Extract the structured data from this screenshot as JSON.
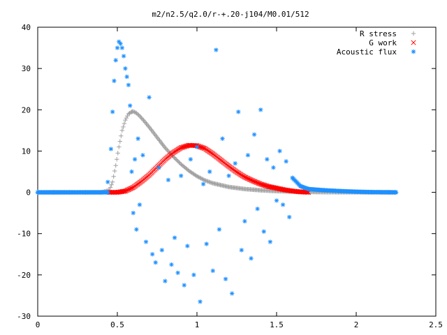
{
  "chart_data": {
    "type": "scatter",
    "title": "m2/n2.5/q2.0/r-+.20-j104/M0.01/512",
    "xlabel": "",
    "ylabel": "",
    "xlim": [
      0,
      2.5
    ],
    "ylim": [
      -30,
      40
    ],
    "xticks": [
      "0",
      "0.5",
      "1",
      "1.5",
      "2",
      "2.5"
    ],
    "yticks": [
      "-30",
      "-20",
      "-10",
      "0",
      "10",
      "20",
      "30",
      "40"
    ],
    "grid": false,
    "legend_position": "top-right",
    "series": [
      {
        "name": "R stress",
        "marker": "+",
        "color": "#a0a0a0",
        "x": [
          0.0,
          0.1,
          0.2,
          0.3,
          0.4,
          0.45,
          0.47,
          0.49,
          0.51,
          0.53,
          0.55,
          0.57,
          0.59,
          0.6,
          0.62,
          0.64,
          0.67,
          0.7,
          0.73,
          0.76,
          0.8,
          0.85,
          0.9,
          0.95,
          1.0,
          1.05,
          1.1,
          1.2,
          1.3,
          1.4,
          1.5,
          1.6,
          1.7,
          1.8,
          1.9,
          2.0,
          2.1,
          2.2,
          2.25
        ],
        "y": [
          0,
          0,
          0,
          0,
          0,
          0.5,
          2.5,
          6.5,
          11,
          15,
          17.5,
          19,
          19.5,
          19.6,
          19.2,
          18.5,
          17.2,
          15.8,
          14.3,
          12.8,
          10.8,
          8.7,
          6.8,
          5.2,
          3.9,
          2.9,
          2.2,
          1.3,
          0.8,
          0.5,
          0.3,
          0.2,
          0.1,
          0.05,
          0.03,
          0.02,
          0,
          0,
          0
        ]
      },
      {
        "name": "G work",
        "marker": "x",
        "color": "#ff0000",
        "x": [
          0.45,
          0.5,
          0.55,
          0.6,
          0.65,
          0.7,
          0.75,
          0.8,
          0.85,
          0.9,
          0.95,
          1.0,
          1.05,
          1.1,
          1.15,
          1.2,
          1.25,
          1.3,
          1.35,
          1.4,
          1.45,
          1.5,
          1.55,
          1.6,
          1.65,
          1.7
        ],
        "y": [
          0,
          0,
          0.3,
          1.2,
          2.6,
          4.2,
          6.1,
          8.0,
          9.6,
          10.8,
          11.4,
          11.3,
          10.6,
          9.3,
          7.8,
          6.3,
          4.9,
          3.7,
          2.8,
          2.0,
          1.4,
          1.0,
          0.6,
          0.3,
          0.1,
          0
        ]
      },
      {
        "name": "Acoustic flux",
        "marker": "*",
        "color": "#1e90ff",
        "x": [
          0.0,
          0.1,
          0.2,
          0.3,
          0.4,
          0.44,
          0.46,
          0.47,
          0.48,
          0.49,
          0.5,
          0.51,
          0.52,
          0.53,
          0.54,
          0.55,
          0.56,
          0.57,
          0.58,
          0.59,
          0.6,
          0.61,
          0.62,
          0.63,
          0.64,
          0.66,
          0.68,
          0.7,
          0.72,
          0.74,
          0.76,
          0.78,
          0.8,
          0.82,
          0.84,
          0.86,
          0.88,
          0.9,
          0.92,
          0.94,
          0.96,
          0.98,
          1.0,
          1.02,
          1.04,
          1.06,
          1.08,
          1.1,
          1.12,
          1.14,
          1.16,
          1.18,
          1.2,
          1.22,
          1.24,
          1.26,
          1.28,
          1.3,
          1.32,
          1.34,
          1.36,
          1.38,
          1.4,
          1.42,
          1.44,
          1.46,
          1.48,
          1.5,
          1.52,
          1.54,
          1.56,
          1.58,
          1.6,
          1.65,
          1.7,
          1.8,
          1.9,
          2.0,
          2.1,
          2.2,
          2.25
        ],
        "y": [
          0,
          0,
          0,
          0,
          0,
          2.5,
          10.5,
          19.5,
          27,
          32,
          35,
          36.5,
          36,
          35,
          33,
          30,
          28,
          26,
          21,
          5,
          -5,
          8,
          -9,
          13,
          -3,
          9,
          -12,
          23,
          -15,
          -17,
          6,
          -14,
          -21.5,
          3,
          -17.5,
          -11,
          -19.5,
          4,
          -22.5,
          -13,
          8,
          -20,
          11,
          -26.5,
          2,
          -12.5,
          5,
          -19,
          34.5,
          -9,
          13,
          -21,
          4,
          -24.5,
          7,
          19.5,
          -14,
          -7,
          9,
          -16,
          14,
          -4,
          20,
          -9.5,
          8,
          -12,
          6,
          -2,
          10,
          -3,
          7.5,
          -6,
          3.5,
          1.5,
          0.8,
          0.5,
          0.3,
          0.15,
          0.05,
          0,
          0
        ]
      }
    ]
  }
}
